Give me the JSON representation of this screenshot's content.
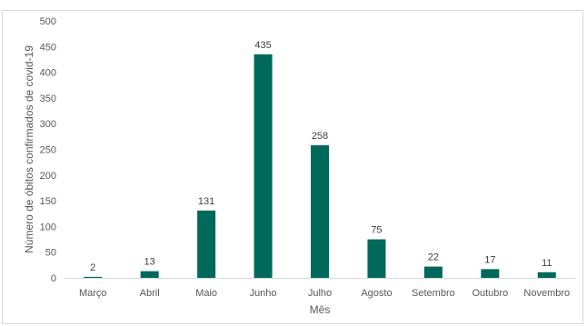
{
  "chart_data": {
    "type": "bar",
    "categories": [
      "Março",
      "Abril",
      "Maio",
      "Junho",
      "Julho",
      "Agosto",
      "Setembro",
      "Outubro",
      "Novembro"
    ],
    "values": [
      2,
      13,
      131,
      435,
      258,
      75,
      22,
      17,
      11
    ],
    "data_labels": [
      "2",
      "13",
      "131",
      "435",
      "258",
      "75",
      "22",
      "17",
      "11"
    ],
    "title": "",
    "xlabel": "Mês",
    "ylabel": "Número de óbitos confirmados de covid-19",
    "ylim": [
      0,
      500
    ],
    "yticks": [
      0,
      50,
      100,
      150,
      200,
      250,
      300,
      350,
      400,
      450,
      500
    ],
    "grid": false,
    "legend": "none",
    "colors": {
      "bar": "#00695c",
      "axis": "#d9d9d9",
      "text": "#595959"
    }
  }
}
